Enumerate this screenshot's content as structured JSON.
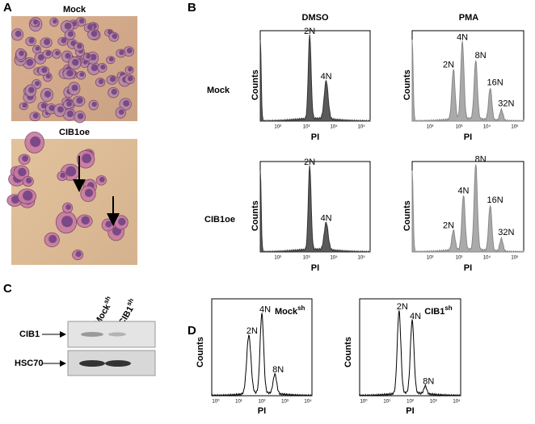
{
  "panel_a": {
    "label": "A",
    "micrographs": [
      "Mock",
      "CIB1oe"
    ]
  },
  "panel_b": {
    "label": "B",
    "columns": [
      "DMSO",
      "PMA"
    ],
    "rows": [
      "Mock",
      "CIB1oe"
    ],
    "y_label": "Counts",
    "x_label": "PI",
    "x_ticks": [
      "10²",
      "10³",
      "10⁴",
      "10⁵"
    ],
    "plots": [
      {
        "peaks": [
          "2N",
          "4N"
        ]
      },
      {
        "peaks": [
          "2N",
          "4N",
          "8N",
          "16N",
          "32N"
        ]
      },
      {
        "peaks": [
          "2N",
          "4N"
        ]
      },
      {
        "peaks": [
          "2N",
          "4N",
          "8N",
          "16N",
          "32N"
        ]
      }
    ]
  },
  "panel_c": {
    "label": "C",
    "lanes": [
      {
        "name": "Mock",
        "sup": "sh"
      },
      {
        "name": "CIB1",
        "sup": "sh"
      }
    ],
    "bands": [
      "CIB1",
      "HSC70"
    ]
  },
  "panel_d": {
    "label": "D",
    "y_label": "Counts",
    "x_label": "PI",
    "x_ticks": [
      "10⁰",
      "10¹",
      "10²",
      "10³",
      "10⁴"
    ],
    "plots": [
      {
        "title": {
          "name": "Mock",
          "sup": "sh"
        },
        "peaks": [
          "2N",
          "4N",
          "8N"
        ]
      },
      {
        "title": {
          "name": "CIB1",
          "sup": "sh"
        },
        "peaks": [
          "2N",
          "4N",
          "8N"
        ]
      }
    ]
  }
}
